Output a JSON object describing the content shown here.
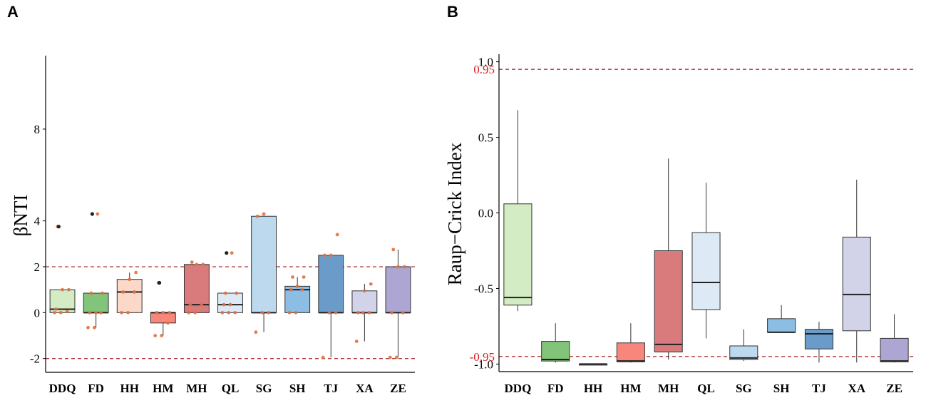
{
  "colors": {
    "DDQ": "#d4ecc4",
    "FD": "#82c57a",
    "HH": "#fbd8c8",
    "HM": "#f7877c",
    "MH": "#d97a7c",
    "QL": "#dde9f5",
    "SG": "#bcd9ee",
    "SH": "#8cbde2",
    "TJ": "#6b9cc9",
    "XA": "#d2d2e8",
    "ZE": "#aea6d2",
    "ref_line": "#b03a3a",
    "ref_text": "#d62020",
    "point": "#e07040",
    "outlier": "#222222"
  },
  "chart_data": [
    {
      "panel": "A",
      "type": "box",
      "categories": [
        "DDQ",
        "FD",
        "HH",
        "HM",
        "MH",
        "QL",
        "SG",
        "SH",
        "TJ",
        "XA",
        "ZE"
      ],
      "ylabel": "βNTI",
      "ylim": [
        -2.6,
        11.2
      ],
      "yticks": [
        -2,
        0,
        2,
        4,
        8
      ],
      "ref_lines": [
        2,
        -2
      ],
      "boxes": [
        {
          "whislo": 0,
          "q1": 0.0,
          "med": 0.15,
          "q3": 1.0,
          "whishi": 1.0,
          "outliers": [
            3.75
          ],
          "points": [
            0,
            0,
            0.05,
            0.15,
            1.0,
            1.0,
            3.75
          ]
        },
        {
          "whislo": -0.65,
          "q1": 0.0,
          "med": 0.0,
          "q3": 0.85,
          "whishi": 0.85,
          "outliers": [
            4.3
          ],
          "points": [
            -0.65,
            -0.65,
            0,
            0,
            0,
            0.85,
            0.85,
            4.3
          ]
        },
        {
          "whislo": 0.0,
          "q1": 0.0,
          "med": 0.9,
          "q3": 1.45,
          "whishi": 1.75,
          "outliers": [],
          "points": [
            0,
            0,
            0.9,
            0.9,
            1.45,
            1.75
          ]
        },
        {
          "whislo": -1.0,
          "q1": -0.45,
          "med": 0.0,
          "q3": 0.0,
          "whishi": 0.0,
          "outliers": [
            1.3
          ],
          "points": [
            -1.0,
            -1.0,
            -0.45,
            0,
            0,
            0,
            1.3
          ]
        },
        {
          "whislo": 0.0,
          "q1": 0.0,
          "med": 0.35,
          "q3": 2.1,
          "whishi": 2.1,
          "outliers": [],
          "points": [
            0,
            0,
            0.35,
            0.35,
            2.1,
            2.1,
            2.2
          ]
        },
        {
          "whislo": 0.0,
          "q1": 0.0,
          "med": 0.35,
          "q3": 0.85,
          "whishi": 0.85,
          "outliers": [
            2.6
          ],
          "points": [
            0,
            0,
            0,
            0.35,
            0.35,
            0.85,
            0.85,
            2.6
          ]
        },
        {
          "whislo": -0.85,
          "q1": 0.0,
          "med": 0.0,
          "q3": 4.2,
          "whishi": 4.2,
          "outliers": [],
          "points": [
            -0.85,
            0,
            0,
            4.2,
            4.3
          ]
        },
        {
          "whislo": 0.0,
          "q1": 0.0,
          "med": 1.0,
          "q3": 1.15,
          "whishi": 1.55,
          "outliers": [],
          "points": [
            0,
            0,
            1.0,
            1.0,
            1.15,
            1.55,
            1.55
          ]
        },
        {
          "whislo": -1.95,
          "q1": 0.0,
          "med": 0.0,
          "q3": 2.5,
          "whishi": 2.5,
          "outliers": [],
          "points": [
            -1.95,
            0,
            0,
            2.5,
            2.5,
            3.4
          ]
        },
        {
          "whislo": -1.25,
          "q1": 0.0,
          "med": 0.0,
          "q3": 0.95,
          "whishi": 1.25,
          "outliers": [],
          "points": [
            -1.25,
            0,
            0,
            0,
            0.95,
            1.25
          ]
        },
        {
          "whislo": -1.95,
          "q1": 0.0,
          "med": 0.0,
          "q3": 2.0,
          "whishi": 2.75,
          "outliers": [],
          "points": [
            -1.95,
            -1.95,
            0,
            0,
            2.0,
            2.0,
            2.75
          ]
        }
      ]
    },
    {
      "panel": "B",
      "type": "box",
      "categories": [
        "DDQ",
        "FD",
        "HH",
        "HM",
        "MH",
        "QL",
        "SG",
        "SH",
        "TJ",
        "XA",
        "ZE"
      ],
      "ylabel": "Raup−Crick Index",
      "ylim": [
        -1.05,
        1.05
      ],
      "yticks": [
        -1.0,
        -0.5,
        0.0,
        0.5,
        1.0
      ],
      "ref_lines": [
        0.95,
        -0.95
      ],
      "ref_labels": [
        "0.95",
        "-0.95"
      ],
      "boxes": [
        {
          "whislo": -0.65,
          "q1": -0.61,
          "med": -0.56,
          "q3": 0.06,
          "whishi": 0.68
        },
        {
          "whislo": -0.99,
          "q1": -0.98,
          "med": -0.97,
          "q3": -0.85,
          "whishi": -0.73
        },
        {
          "whislo": -1.0,
          "q1": -1.0,
          "med": -1.0,
          "q3": -1.0,
          "whishi": -1.0
        },
        {
          "whislo": -0.99,
          "q1": -0.985,
          "med": -0.98,
          "q3": -0.86,
          "whishi": -0.73
        },
        {
          "whislo": -0.97,
          "q1": -0.92,
          "med": -0.87,
          "q3": -0.25,
          "whishi": 0.36
        },
        {
          "whislo": -0.83,
          "q1": -0.64,
          "med": -0.46,
          "q3": -0.13,
          "whishi": 0.2
        },
        {
          "whislo": -0.98,
          "q1": -0.97,
          "med": -0.96,
          "q3": -0.88,
          "whishi": -0.77
        },
        {
          "whislo": -0.79,
          "q1": -0.79,
          "med": -0.79,
          "q3": -0.7,
          "whishi": -0.61
        },
        {
          "whislo": -0.99,
          "q1": -0.9,
          "med": -0.8,
          "q3": -0.77,
          "whishi": -0.72
        },
        {
          "whislo": -0.99,
          "q1": -0.78,
          "med": -0.54,
          "q3": -0.16,
          "whishi": 0.22
        },
        {
          "whislo": -0.99,
          "q1": -0.985,
          "med": -0.98,
          "q3": -0.83,
          "whishi": -0.67
        }
      ]
    }
  ]
}
